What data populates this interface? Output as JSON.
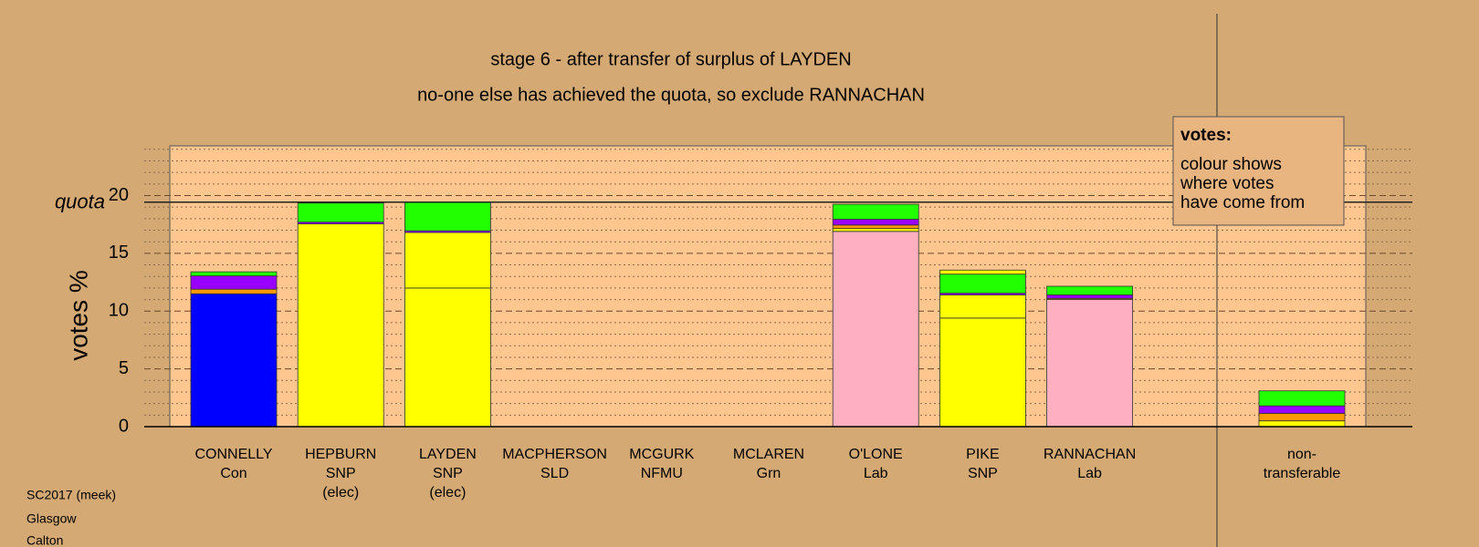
{
  "chart_data": {
    "type": "stacked_bar",
    "title": "stage 6 - after transfer of surplus of LAYDEN",
    "subtitle": "no-one else has achieved the quota, so exclude RANNACHAN",
    "y_label": "votes %",
    "quota_label": "quota",
    "quota": 19.43,
    "categories": [
      [
        "CONNELLY",
        "Con"
      ],
      [
        "HEPBURN",
        "SNP",
        "(elec)"
      ],
      [
        "LAYDEN",
        "SNP",
        "(elec)"
      ],
      [
        "MACPHERSON",
        "SLD"
      ],
      [
        "MCGURK",
        "NFMU"
      ],
      [
        "MCLAREN",
        "Grn"
      ],
      [
        "O'LONE",
        "Lab"
      ],
      [
        "PIKE",
        "SNP"
      ],
      [
        "RANNACHAN",
        "Lab"
      ],
      [
        "non-",
        "transferable"
      ]
    ],
    "series": [
      {
        "color": "#0000ff",
        "values": [
          11.5,
          null,
          null,
          null,
          null,
          null,
          null,
          null,
          null,
          null
        ]
      },
      {
        "color": "#ffb0c0",
        "values": [
          null,
          null,
          null,
          null,
          null,
          null,
          16.9,
          null,
          11.0,
          null
        ]
      },
      {
        "color": "#ffff00",
        "values": [
          null,
          17.55,
          12.0,
          null,
          null,
          null,
          0.25,
          9.4,
          null,
          0.5
        ]
      },
      {
        "color": "#ffff00",
        "values": [
          null,
          null,
          4.8,
          null,
          null,
          null,
          null,
          2.0,
          null,
          null
        ]
      },
      {
        "color": "#ff9900",
        "values": [
          0.4,
          null,
          null,
          null,
          null,
          null,
          0.3,
          null,
          0.1,
          0.65
        ]
      },
      {
        "color": "#9900ff",
        "values": [
          1.15,
          0.15,
          0.15,
          null,
          null,
          null,
          0.5,
          0.15,
          0.3,
          0.65
        ]
      },
      {
        "color": "#22ff00",
        "values": [
          0.35,
          1.65,
          2.45,
          null,
          null,
          null,
          1.3,
          1.65,
          0.75,
          1.3
        ]
      },
      {
        "color": "#ffff00",
        "values": [
          null,
          null,
          null,
          null,
          null,
          null,
          null,
          0.35,
          null,
          null
        ]
      }
    ],
    "ylim": [
      0,
      24.3
    ],
    "yticks": [
      0,
      5,
      10,
      15,
      20
    ],
    "minor_yticks": [
      1,
      2,
      3,
      4,
      6,
      7,
      8,
      9,
      11,
      12,
      13,
      14,
      16,
      17,
      18,
      19,
      21,
      22,
      23,
      24
    ],
    "grid": true,
    "annotation": {
      "title": "votes:",
      "lines": [
        "colour shows",
        "where votes",
        "have come from"
      ]
    },
    "footer": [
      "SC2017 (meek)",
      "Glasgow",
      "Calton"
    ]
  }
}
